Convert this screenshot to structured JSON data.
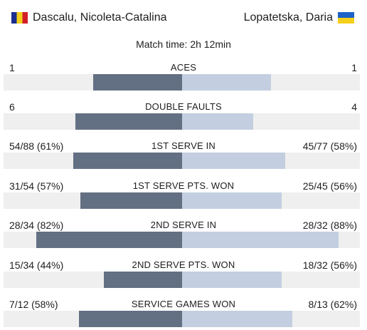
{
  "header": {
    "left_player": {
      "name": "Dascalu, Nicoleta-Catalina",
      "flag": "romania-flag"
    },
    "right_player": {
      "name": "Lopatetska, Daria",
      "flag": "ukraine-flag"
    },
    "match_time": "Match time: 2h 12min"
  },
  "stats": [
    {
      "title": "ACES",
      "left": "1",
      "right": "1",
      "left_share": 0.5,
      "right_share": 0.5
    },
    {
      "title": "DOUBLE FAULTS",
      "left": "6",
      "right": "4",
      "left_share": 0.6,
      "right_share": 0.4
    },
    {
      "title": "1ST SERVE IN",
      "left": "54/88 (61%)",
      "right": "45/77 (58%)",
      "left_share": 0.61,
      "right_share": 0.58
    },
    {
      "title": "1ST SERVE PTS. WON",
      "left": "31/54 (57%)",
      "right": "25/45 (56%)",
      "left_share": 0.57,
      "right_share": 0.56
    },
    {
      "title": "2ND SERVE IN",
      "left": "28/34 (82%)",
      "right": "28/32 (88%)",
      "left_share": 0.82,
      "right_share": 0.88
    },
    {
      "title": "2ND SERVE PTS. WON",
      "left": "15/34 (44%)",
      "right": "18/32 (56%)",
      "left_share": 0.44,
      "right_share": 0.56
    },
    {
      "title": "SERVICE GAMES WON",
      "left": "7/12 (58%)",
      "right": "8/13 (62%)",
      "left_share": 0.58,
      "right_share": 0.62
    }
  ],
  "colors": {
    "left_bar": "#637083",
    "right_bar": "#c3cfe0",
    "track": "#efefef",
    "text": "#1e1e1e"
  }
}
